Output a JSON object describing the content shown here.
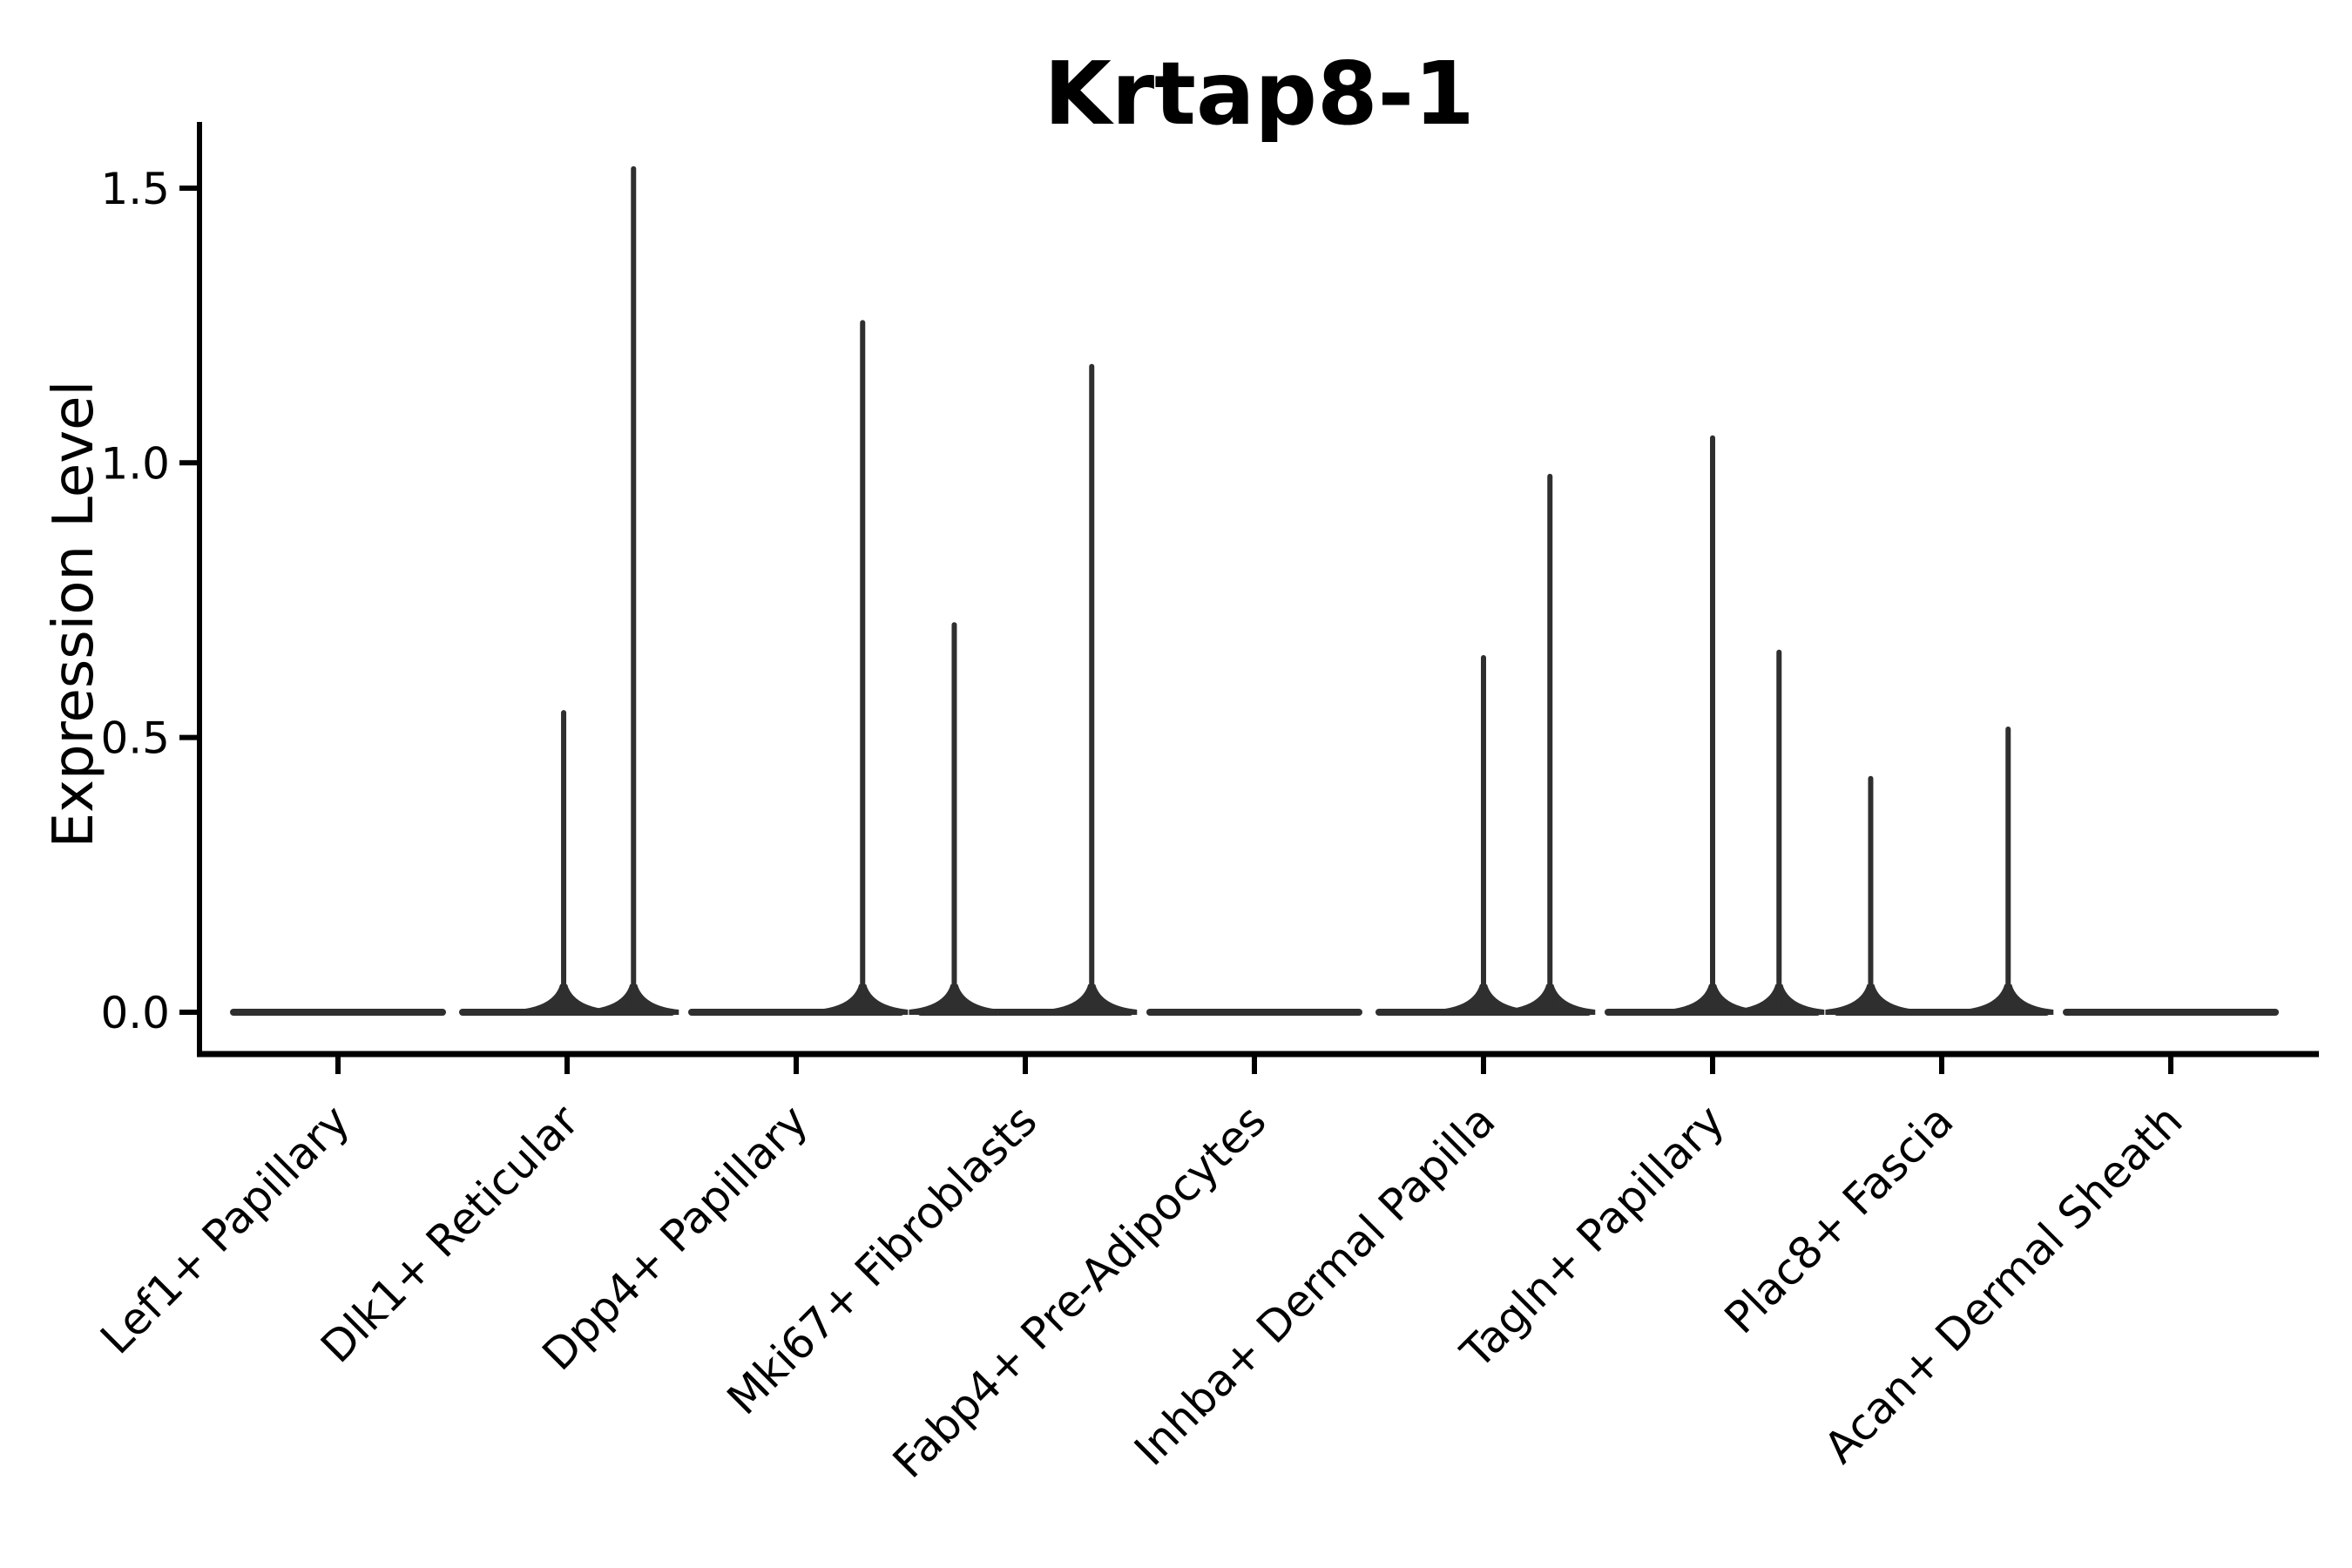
{
  "chart_data": {
    "type": "violin",
    "title": "Krtap8-1",
    "ylabel": "Expression Level",
    "xlabel": "",
    "grid": false,
    "legend": "none",
    "yticks_labels": [
      "0.0",
      "0.5",
      "1.0",
      "1.5"
    ],
    "ytick_values": [
      0.0,
      0.5,
      1.0,
      1.5
    ],
    "ylim": [
      -0.08,
      1.62
    ],
    "categories": [
      "Lef1+ Papillary",
      "Dlk1+ Reticular",
      "Dpp4+ Papillary",
      "Mki67+ Fibroblasts",
      "Fabp4+ Pre-Adipocytes",
      "Inhba+ Dermal Papilla",
      "Tagln+ Papillary",
      "Plac8+ Fascia",
      "Acan+ Dermal Sheath"
    ],
    "violins": [
      {
        "category": "Lef1+ Papillary",
        "baseline_value": 0,
        "spikes": []
      },
      {
        "category": "Dlk1+ Reticular",
        "baseline_value": 0,
        "spikes": [
          {
            "offset_frac": -0.015,
            "value": 0.55
          },
          {
            "offset_frac": 0.29,
            "value": 1.54
          }
        ]
      },
      {
        "category": "Dpp4+ Papillary",
        "baseline_value": 0,
        "spikes": [
          {
            "offset_frac": 0.29,
            "value": 1.26
          }
        ]
      },
      {
        "category": "Mki67+ Fibroblasts",
        "baseline_value": 0,
        "spikes": [
          {
            "offset_frac": -0.31,
            "value": 0.71
          },
          {
            "offset_frac": 0.29,
            "value": 1.18
          }
        ]
      },
      {
        "category": "Fabp4+ Pre-Adipocytes",
        "baseline_value": 0,
        "spikes": []
      },
      {
        "category": "Inhba+ Dermal Papilla",
        "baseline_value": 0,
        "spikes": [
          {
            "offset_frac": 0.0,
            "value": 0.65
          },
          {
            "offset_frac": 0.29,
            "value": 0.98
          }
        ]
      },
      {
        "category": "Tagln+ Papillary",
        "baseline_value": 0,
        "spikes": [
          {
            "offset_frac": 0.0,
            "value": 1.05
          },
          {
            "offset_frac": 0.29,
            "value": 0.66
          }
        ]
      },
      {
        "category": "Plac8+ Fascia",
        "baseline_value": 0,
        "spikes": [
          {
            "offset_frac": -0.31,
            "value": 0.43
          },
          {
            "offset_frac": 0.29,
            "value": 0.52
          }
        ]
      },
      {
        "category": "Acan+ Dermal Sheath",
        "baseline_value": 0,
        "spikes": []
      }
    ],
    "baseline_halfwidth_frac": 0.47,
    "colors": {
      "violin_fill": "#2f2f2f",
      "axis": "#000000",
      "text": "#000000",
      "background": "#ffffff"
    }
  }
}
